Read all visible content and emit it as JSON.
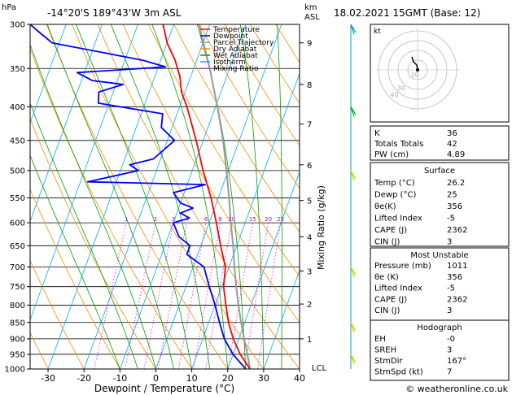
{
  "header": {
    "left_unit": "hPa",
    "location": "-14°20'S  189°43'W  3m  ASL",
    "km_label": "km",
    "asl_label": "ASL",
    "datetime": "18.02.2021  15GMT  (Base: 12)"
  },
  "axes": {
    "xlabel": "Dewpoint / Temperature (°C)",
    "ylabel": "Mixing Ratio (g/kg)",
    "lcl_label": "LCL"
  },
  "legend": {
    "items": [
      {
        "label": "Temperature",
        "color": "#ff0000"
      },
      {
        "label": "Dewpoint",
        "color": "#0000ff"
      },
      {
        "label": "Parcel Trajectory",
        "color": "#999999"
      },
      {
        "label": "Dry Adiabat",
        "color": "#ff8c00"
      },
      {
        "label": "Wet Adiabat",
        "color": "#00a000"
      },
      {
        "label": "Isotherm",
        "color": "#00aaff"
      },
      {
        "label": "Mixing Ratio",
        "color": "#ff00ff"
      }
    ]
  },
  "chart_data": {
    "type": "skew-t",
    "pressure_levels": [
      300,
      350,
      400,
      450,
      500,
      550,
      600,
      650,
      700,
      750,
      800,
      850,
      900,
      950,
      1000
    ],
    "x_ticks": [
      -30,
      -20,
      -10,
      0,
      10,
      20,
      30,
      40
    ],
    "xlim": [
      -35,
      40
    ],
    "ylim_hpa": [
      1000,
      300
    ],
    "km_ticks": [
      {
        "km": 1,
        "p": 900
      },
      {
        "km": 2,
        "p": 797
      },
      {
        "km": 3,
        "p": 710
      },
      {
        "km": 4,
        "p": 630
      },
      {
        "km": 5,
        "p": 555
      },
      {
        "km": 6,
        "p": 490
      },
      {
        "km": 7,
        "p": 425
      },
      {
        "km": 8,
        "p": 370
      },
      {
        "km": 9,
        "p": 320
      }
    ],
    "mixing_ratio_labels": [
      "1",
      "2",
      "3",
      "4",
      "6",
      "8",
      "10",
      "15",
      "20",
      "25"
    ],
    "temperature": [
      {
        "p": 1000,
        "t": 26.2
      },
      {
        "p": 950,
        "t": 22
      },
      {
        "p": 900,
        "t": 18.5
      },
      {
        "p": 850,
        "t": 15.5
      },
      {
        "p": 800,
        "t": 13
      },
      {
        "p": 750,
        "t": 10.5
      },
      {
        "p": 700,
        "t": 9
      },
      {
        "p": 650,
        "t": 5.5
      },
      {
        "p": 600,
        "t": 2
      },
      {
        "p": 550,
        "t": -2
      },
      {
        "p": 500,
        "t": -7
      },
      {
        "p": 450,
        "t": -12
      },
      {
        "p": 400,
        "t": -18
      },
      {
        "p": 380,
        "t": -21
      },
      {
        "p": 360,
        "t": -23
      },
      {
        "p": 340,
        "t": -26
      },
      {
        "p": 320,
        "t": -30
      },
      {
        "p": 300,
        "t": -33
      }
    ],
    "dewpoint": [
      {
        "p": 1000,
        "t": 25
      },
      {
        "p": 950,
        "t": 20
      },
      {
        "p": 900,
        "t": 16
      },
      {
        "p": 850,
        "t": 13
      },
      {
        "p": 800,
        "t": 10
      },
      {
        "p": 750,
        "t": 6.5
      },
      {
        "p": 700,
        "t": 3
      },
      {
        "p": 670,
        "t": -3
      },
      {
        "p": 650,
        "t": -3
      },
      {
        "p": 630,
        "t": -7
      },
      {
        "p": 600,
        "t": -10
      },
      {
        "p": 590,
        "t": -6
      },
      {
        "p": 580,
        "t": -9
      },
      {
        "p": 570,
        "t": -6
      },
      {
        "p": 560,
        "t": -10
      },
      {
        "p": 540,
        "t": -13
      },
      {
        "p": 525,
        "t": -5
      },
      {
        "p": 520,
        "t": -38
      },
      {
        "p": 500,
        "t": -25
      },
      {
        "p": 490,
        "t": -28
      },
      {
        "p": 480,
        "t": -22
      },
      {
        "p": 450,
        "t": -18
      },
      {
        "p": 430,
        "t": -23
      },
      {
        "p": 410,
        "t": -24
      },
      {
        "p": 395,
        "t": -43
      },
      {
        "p": 380,
        "t": -44
      },
      {
        "p": 370,
        "t": -38
      },
      {
        "p": 365,
        "t": -47
      },
      {
        "p": 355,
        "t": -52
      },
      {
        "p": 348,
        "t": -28
      },
      {
        "p": 340,
        "t": -35
      },
      {
        "p": 320,
        "t": -62
      },
      {
        "p": 310,
        "t": -66
      },
      {
        "p": 300,
        "t": -70
      }
    ],
    "parcel": [
      {
        "p": 1000,
        "t": 26.2
      },
      {
        "p": 950,
        "t": 24
      },
      {
        "p": 900,
        "t": 21.5
      },
      {
        "p": 850,
        "t": 19
      },
      {
        "p": 800,
        "t": 16.5
      },
      {
        "p": 750,
        "t": 14
      },
      {
        "p": 700,
        "t": 11.5
      },
      {
        "p": 650,
        "t": 9
      },
      {
        "p": 600,
        "t": 6
      },
      {
        "p": 550,
        "t": 3
      },
      {
        "p": 500,
        "t": -0.5
      },
      {
        "p": 450,
        "t": -4.5
      },
      {
        "p": 400,
        "t": -9.5
      },
      {
        "p": 350,
        "t": -15.5
      },
      {
        "p": 300,
        "t": -23
      }
    ]
  },
  "hodograph": {
    "label": "kt",
    "rings": [
      "10",
      "20",
      "30",
      "40"
    ],
    "ring_labels": [
      "10",
      "30",
      "40"
    ]
  },
  "indices": {
    "k_label": "K",
    "k": "36",
    "tt_label": "Totals Totals",
    "tt": "42",
    "pw_label": "PW (cm)",
    "pw": "4.89"
  },
  "surface": {
    "title": "Surface",
    "rows": [
      {
        "label": "Temp (°C)",
        "value": "26.2"
      },
      {
        "label": "Dewp (°C)",
        "value": "25"
      },
      {
        "label": "θe(K)",
        "value": "356"
      },
      {
        "label": "Lifted Index",
        "value": "-5"
      },
      {
        "label": "CAPE (J)",
        "value": "2362"
      },
      {
        "label": "CIN (J)",
        "value": "3"
      }
    ]
  },
  "most_unstable": {
    "title": "Most Unstable",
    "rows": [
      {
        "label": "Pressure (mb)",
        "value": "1011"
      },
      {
        "label": "θe (K)",
        "value": "356"
      },
      {
        "label": "Lifted Index",
        "value": "-5"
      },
      {
        "label": "CAPE (J)",
        "value": "2362"
      },
      {
        "label": "CIN (J)",
        "value": "3"
      }
    ]
  },
  "hodo_table": {
    "title": "Hodograph",
    "rows": [
      {
        "label": "EH",
        "value": "-0"
      },
      {
        "label": "SREH",
        "value": "3"
      },
      {
        "label": "StmDir",
        "value": "167°"
      },
      {
        "label": "StmSpd (kt)",
        "value": "7"
      }
    ]
  },
  "footer": {
    "copyright": "© weatheronline.co.uk"
  }
}
